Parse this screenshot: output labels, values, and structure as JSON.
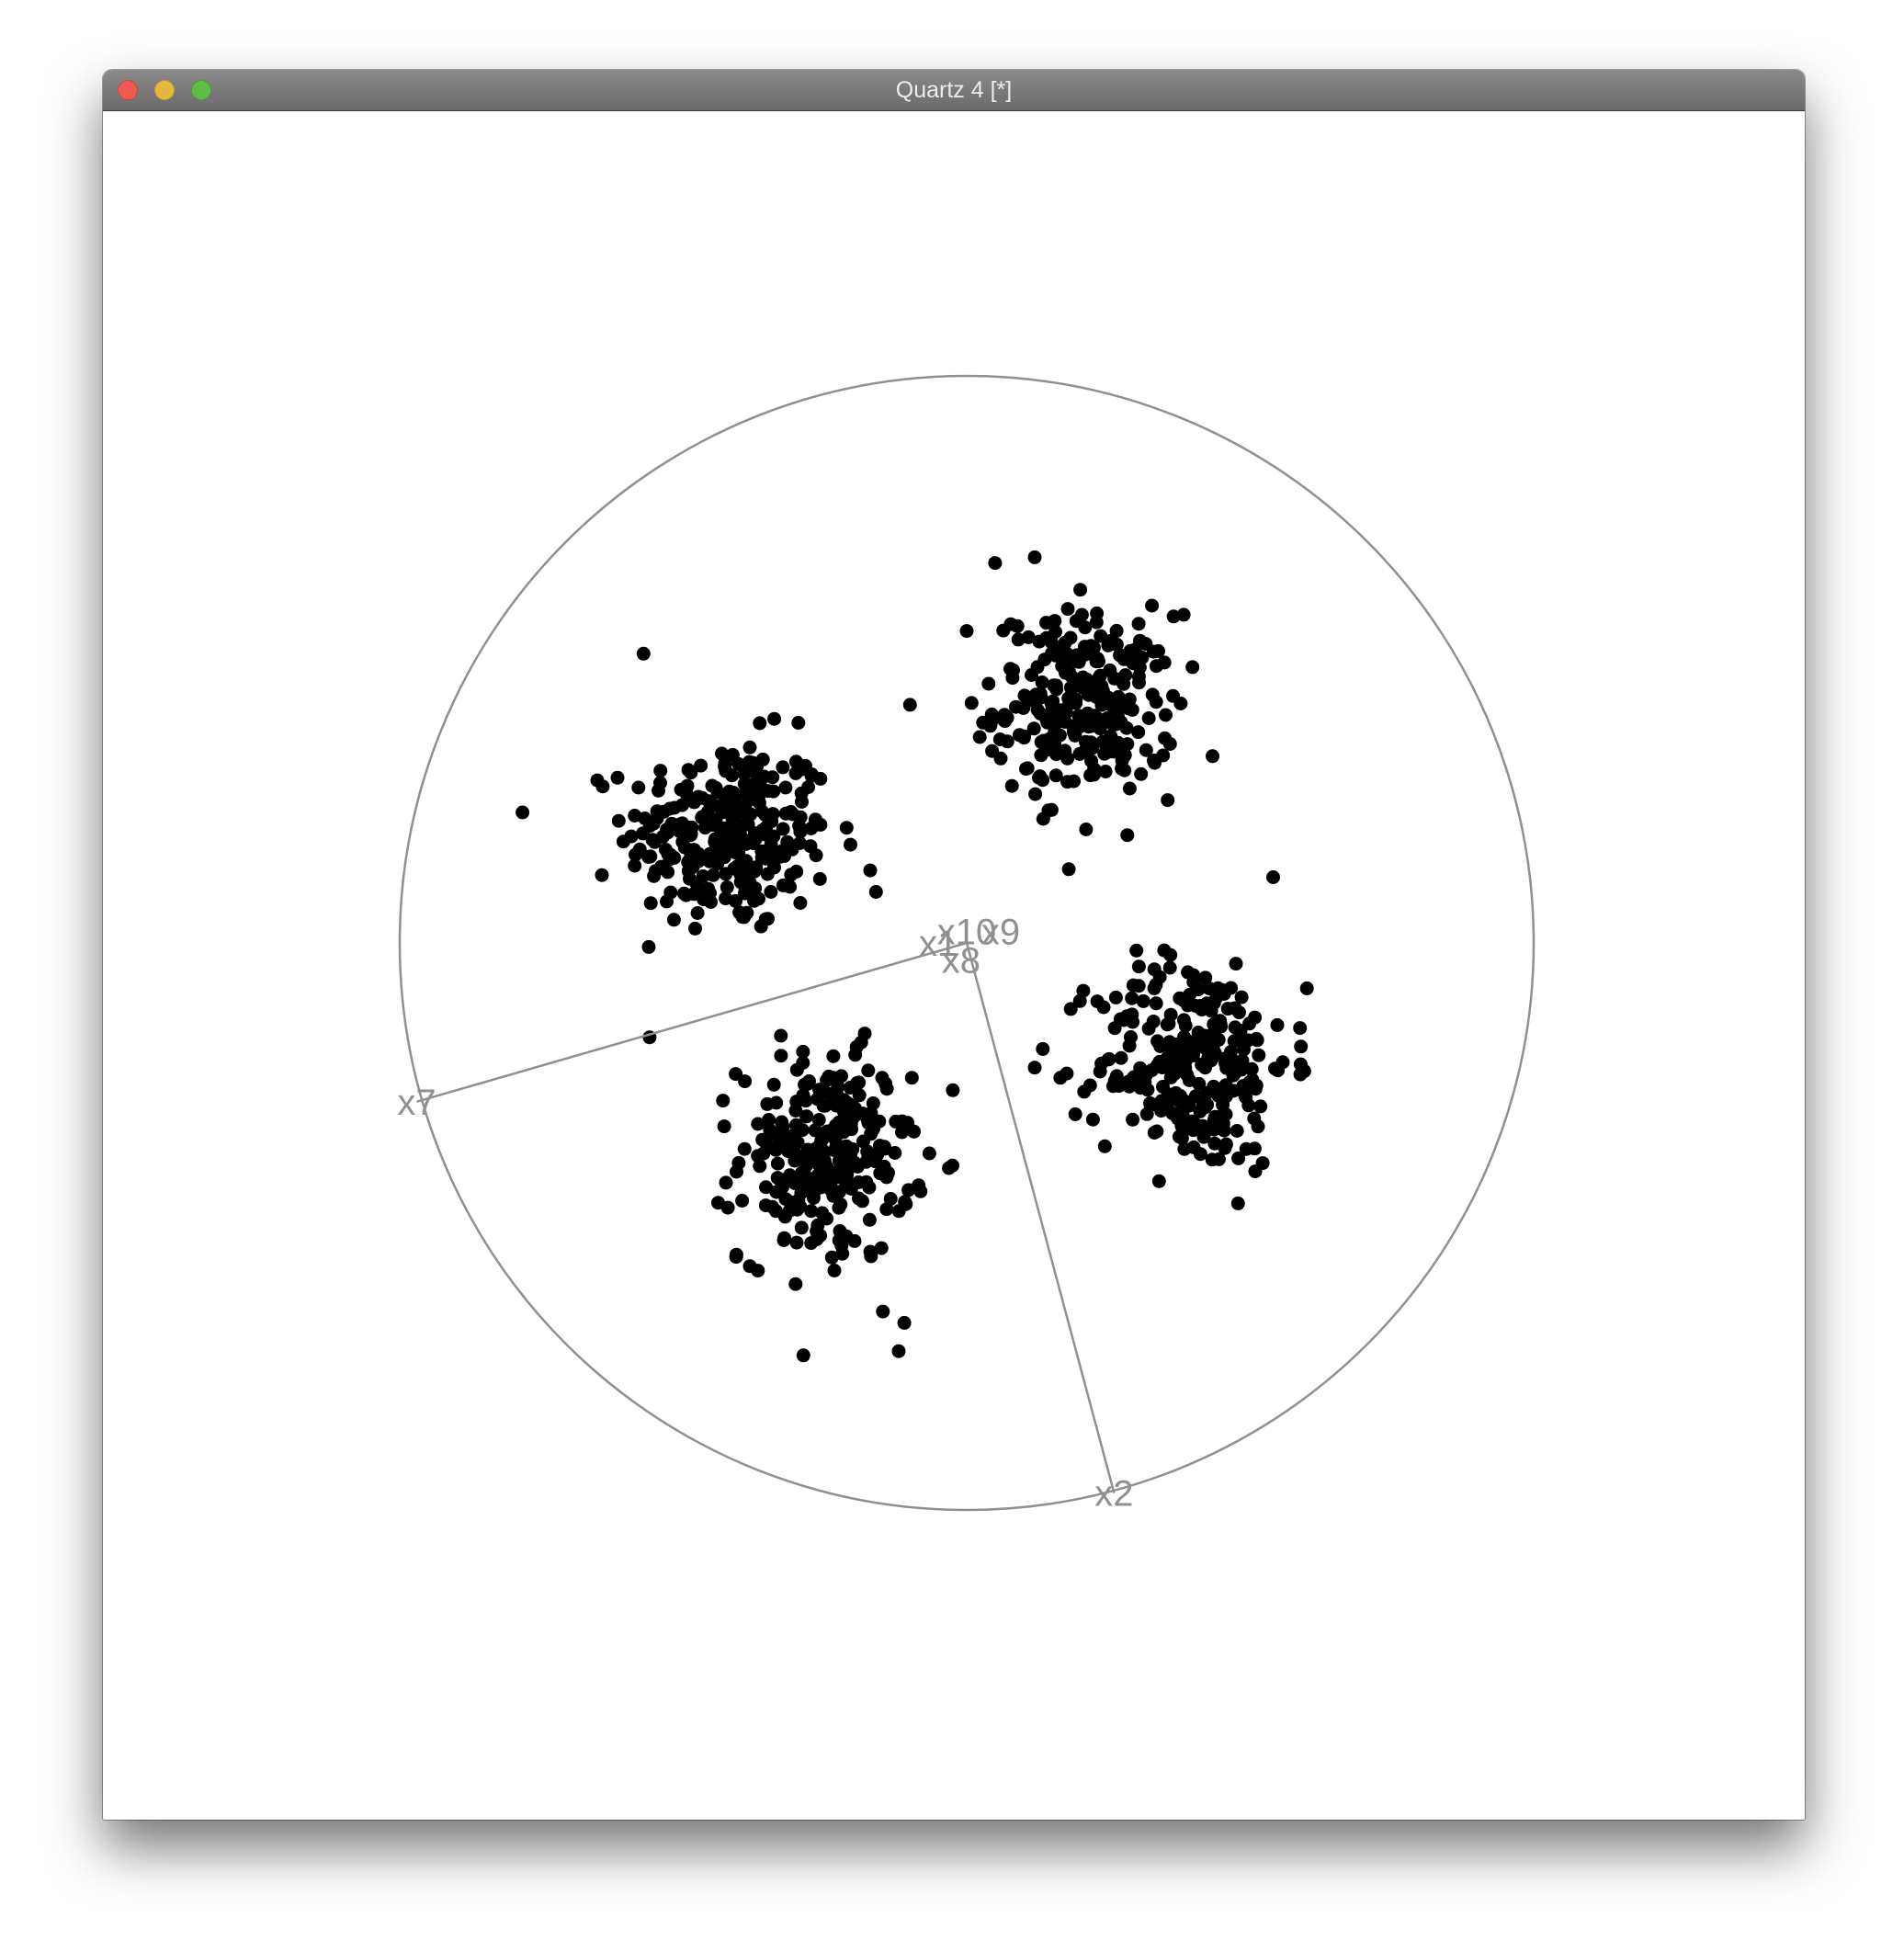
{
  "window": {
    "title": "Quartz 4 [*]"
  },
  "colors": {
    "points": "#000000",
    "axes": "#909090",
    "circle": "#909090",
    "background": "#ffffff"
  },
  "chart_data": {
    "type": "scatter",
    "title": "",
    "xlabel": "",
    "ylabel": "",
    "circle": true,
    "xlim": [
      -1,
      1
    ],
    "ylim": [
      -1,
      1
    ],
    "axes": [
      {
        "name": "x10",
        "x": 0.0,
        "y": 0.02
      },
      {
        "name": "x1",
        "x": -0.05,
        "y": 0.0
      },
      {
        "name": "x8",
        "x": -0.01,
        "y": -0.03
      },
      {
        "name": "x9",
        "x": 0.06,
        "y": 0.02
      },
      {
        "name": "x7",
        "x": -0.97,
        "y": -0.28
      },
      {
        "name": "x2",
        "x": 0.26,
        "y": -0.97
      }
    ],
    "clusters": [
      {
        "cx": -0.42,
        "cy": 0.19,
        "sx": 0.09,
        "sy": 0.085,
        "n": 280
      },
      {
        "cx": 0.21,
        "cy": 0.42,
        "sx": 0.08,
        "sy": 0.08,
        "n": 260
      },
      {
        "cx": -0.25,
        "cy": -0.38,
        "sx": 0.075,
        "sy": 0.09,
        "n": 260
      },
      {
        "cx": 0.4,
        "cy": -0.21,
        "sx": 0.085,
        "sy": 0.095,
        "n": 270
      }
    ],
    "outliers": [
      {
        "x": -0.57,
        "y": 0.51
      },
      {
        "x": -0.1,
        "y": 0.42
      },
      {
        "x": 0.05,
        "y": 0.67
      },
      {
        "x": 0.12,
        "y": 0.68
      },
      {
        "x": 0.18,
        "y": 0.13
      },
      {
        "x": 0.12,
        "y": -0.22
      },
      {
        "x": 0.6,
        "y": -0.08
      },
      {
        "x": -0.12,
        "y": -0.72
      },
      {
        "x": -0.11,
        "y": -0.67
      },
      {
        "x": -0.16,
        "y": 0.09
      },
      {
        "x": 0.0,
        "y": 0.55
      }
    ]
  }
}
